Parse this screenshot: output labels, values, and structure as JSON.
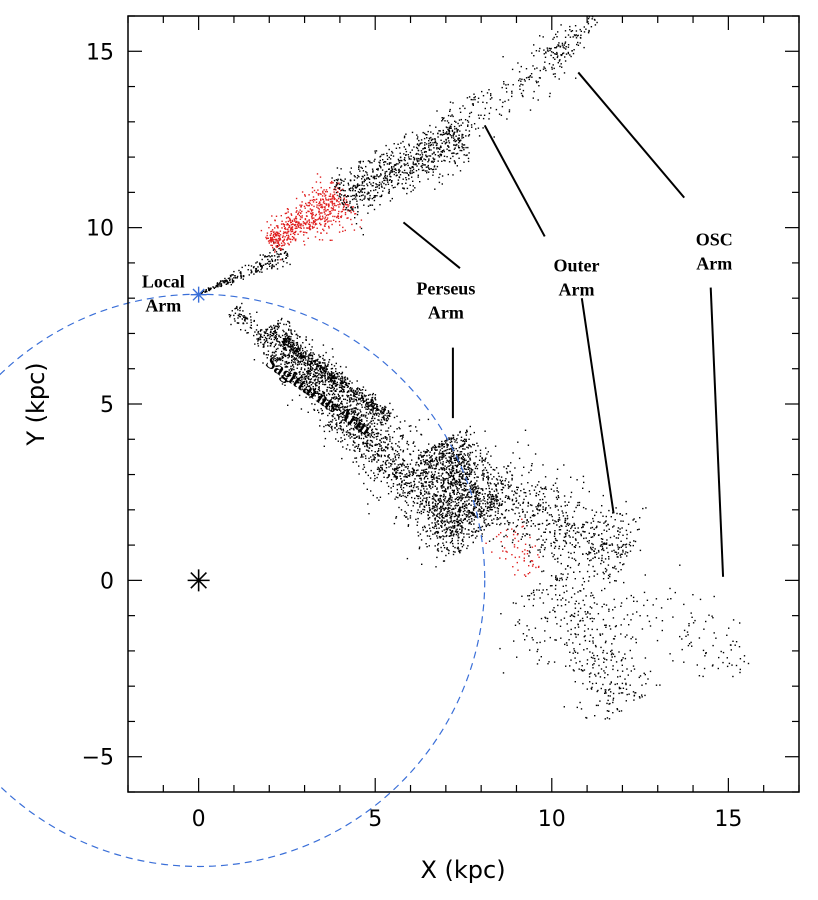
{
  "chart_data": {
    "type": "scatter",
    "xlabel": "X (kpc)",
    "ylabel": "Y (kpc)",
    "xlim": [
      -2,
      17
    ],
    "ylim": [
      -6,
      16
    ],
    "x_ticks": [
      0,
      5,
      10,
      15
    ],
    "y_ticks": [
      -5,
      0,
      5,
      10,
      15
    ],
    "x_tick_labels": [
      "0",
      "5",
      "10",
      "15"
    ],
    "y_tick_labels": [
      "−5",
      "0",
      "5",
      "10",
      "15"
    ],
    "galactic_center": {
      "x": 0,
      "y": 0
    },
    "sun": {
      "x": 0,
      "y": 8.1
    },
    "solar_circle_radius": 8.1,
    "colors": {
      "points": "#000000",
      "highlight": "#e02020",
      "circle": "#3a6fd8",
      "sun": "#3a6fd8"
    },
    "annotations": [
      {
        "lines": [
          "Local",
          "Arm"
        ],
        "x": -1.0,
        "y": 8.3,
        "align": "middle",
        "rotate": 0,
        "pointer": null
      },
      {
        "lines": [
          "Perseus",
          "Arm"
        ],
        "x": 7.0,
        "y": 8.1,
        "align": "middle",
        "rotate": 0,
        "pointer": [
          [
            7.4,
            8.85
          ],
          [
            5.8,
            10.15
          ]
        ]
      },
      {
        "lines": [
          "Outer",
          "Arm"
        ],
        "x": 10.7,
        "y": 8.75,
        "align": "middle",
        "rotate": 0,
        "pointer": [
          [
            9.8,
            9.75
          ],
          [
            8.1,
            12.9
          ]
        ]
      },
      {
        "lines": [
          "OSC",
          "Arm"
        ],
        "x": 14.6,
        "y": 9.5,
        "align": "middle",
        "rotate": 0,
        "pointer": [
          [
            13.75,
            10.85
          ],
          [
            10.75,
            14.4
          ]
        ]
      },
      {
        "lines": [
          "Sagittarius Arm"
        ],
        "x": 3.3,
        "y": 5.1,
        "align": "middle",
        "rotate": 35,
        "pointer": null
      }
    ],
    "vertical_pointers": [
      {
        "x1": 7.2,
        "y1": 6.6,
        "x2": 7.2,
        "y2": 4.6
      },
      {
        "x1": 10.85,
        "y1": 8.0,
        "x2": 11.75,
        "y2": 1.9
      },
      {
        "x1": 14.5,
        "y1": 8.3,
        "x2": 14.85,
        "y2": 0.1
      }
    ],
    "regions": [
      {
        "name": "local-arm-tip",
        "color": "black",
        "density": 220,
        "start": [
          0,
          8.1
        ],
        "end": [
          2.5,
          9.3
        ],
        "width_start": 0.02,
        "width_end": 0.35
      },
      {
        "name": "local-arm-red",
        "color": "red",
        "density": 620,
        "start": [
          2.0,
          9.55
        ],
        "end": [
          4.2,
          10.9
        ],
        "width_start": 0.35,
        "width_end": 0.85
      },
      {
        "name": "local-arm-far",
        "color": "black",
        "density": 750,
        "start": [
          4.0,
          10.8
        ],
        "end": [
          7.5,
          12.6
        ],
        "width_start": 0.8,
        "width_end": 0.7
      },
      {
        "name": "local-arm-outer",
        "color": "black",
        "density": 210,
        "start": [
          7.0,
          12.7
        ],
        "end": [
          10.5,
          15.0
        ],
        "width_start": 0.8,
        "width_end": 0.7
      },
      {
        "name": "local-arm-osc",
        "color": "black",
        "density": 90,
        "start": [
          10.0,
          14.8
        ],
        "end": [
          11.2,
          15.95
        ],
        "width_start": 0.6,
        "width_end": 0.3
      },
      {
        "name": "sgr-dense",
        "color": "black",
        "density": 1450,
        "start": [
          2.0,
          7.2
        ],
        "end": [
          7.7,
          1.0
        ],
        "width_start": 0.6,
        "width_end": 1.2
      },
      {
        "name": "sgr-spread",
        "color": "black",
        "density": 650,
        "start": [
          1.0,
          7.7
        ],
        "end": [
          7.5,
          1.2
        ],
        "width_start": 0.35,
        "width_end": 0.9
      },
      {
        "name": "sgr-core-streak",
        "color": "black",
        "density": 520,
        "start": [
          2.4,
          6.8
        ],
        "end": [
          5.4,
          4.6
        ],
        "width_start": 0.2,
        "width_end": 0.25
      },
      {
        "name": "perseus-inner",
        "color": "black",
        "density": 1050,
        "start": [
          6.8,
          3.9
        ],
        "end": [
          8.0,
          1.8
        ],
        "width_start": 1.0,
        "width_end": 1.2
      },
      {
        "name": "perseus-outer",
        "color": "black",
        "density": 650,
        "start": [
          8.3,
          2.5
        ],
        "end": [
          12.2,
          0.7
        ],
        "width_start": 1.5,
        "width_end": 1.2
      },
      {
        "name": "perseus-red",
        "color": "red",
        "density": 60,
        "start": [
          8.6,
          1.4
        ],
        "end": [
          9.4,
          0.2
        ],
        "width_start": 0.7,
        "width_end": 0.6
      },
      {
        "name": "outer-lower",
        "color": "black",
        "density": 420,
        "start": [
          9.8,
          0.0
        ],
        "end": [
          12.2,
          -3.6
        ],
        "width_start": 1.8,
        "width_end": 1.2
      },
      {
        "name": "outer-far",
        "color": "black",
        "density": 100,
        "start": [
          12.2,
          -0.5
        ],
        "end": [
          15.6,
          -2.4
        ],
        "width_start": 1.4,
        "width_end": 0.9
      }
    ]
  }
}
